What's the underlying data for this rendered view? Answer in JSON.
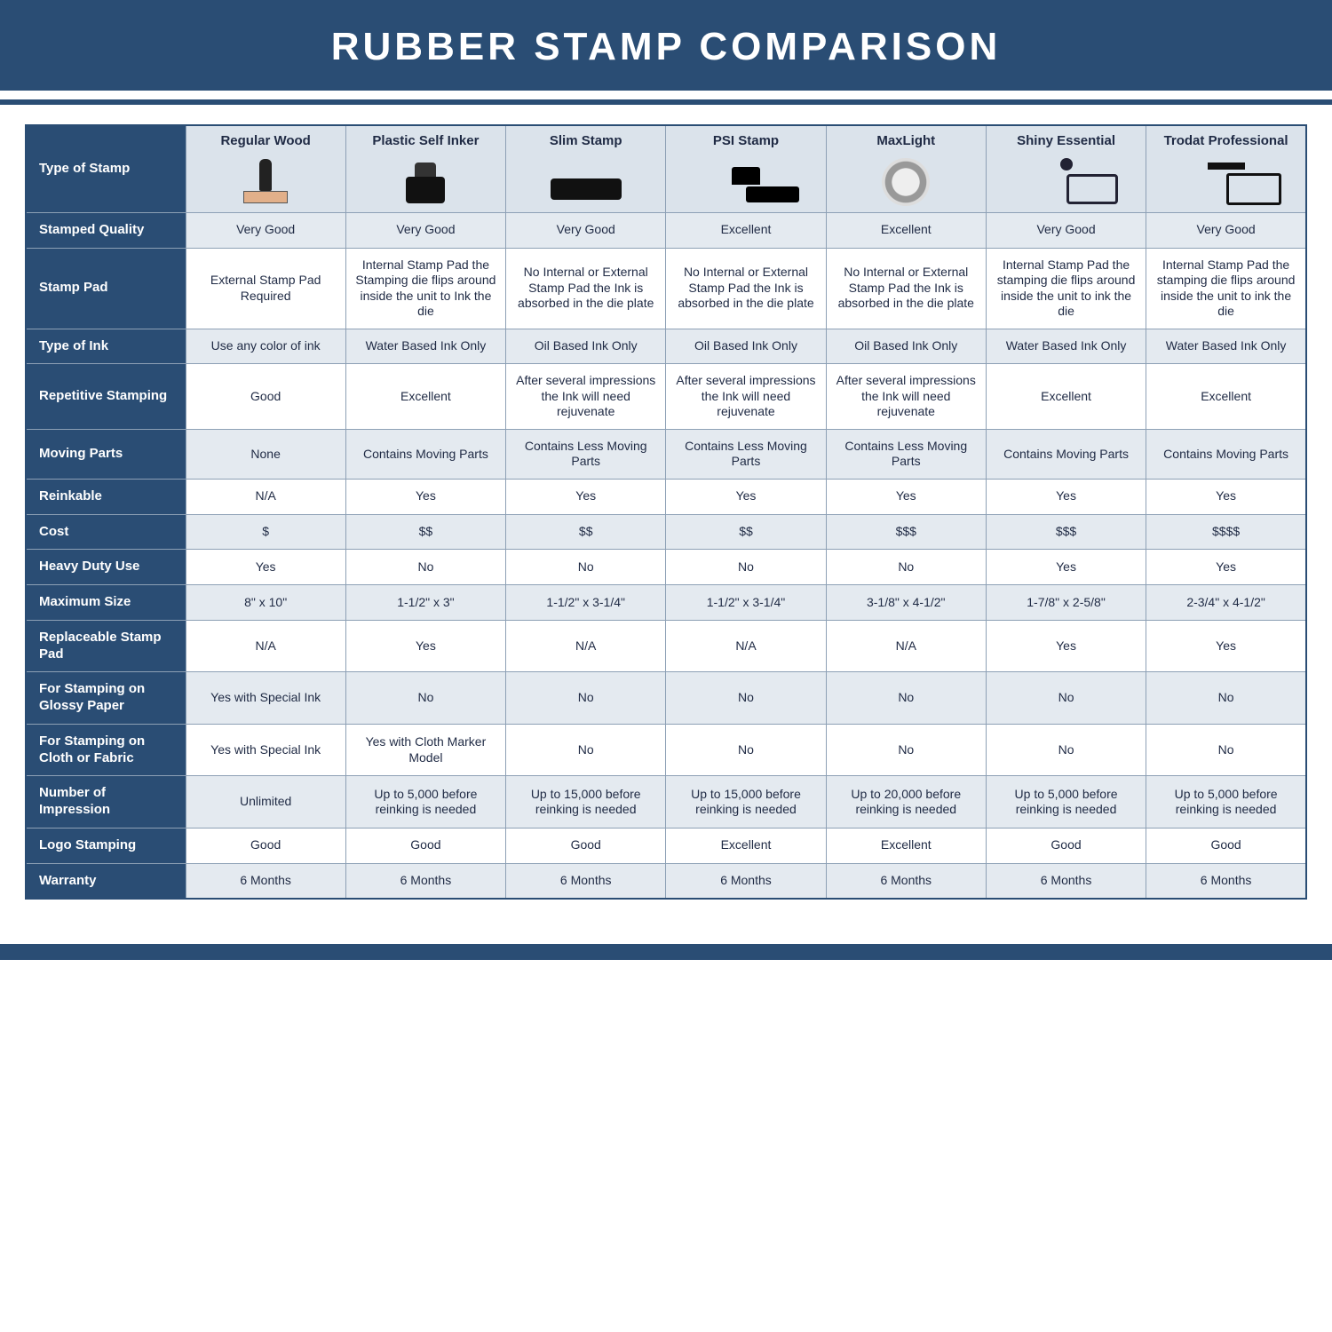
{
  "title": "RUBBER STAMP COMPARISON",
  "colors": {
    "brand": "#2a4d74",
    "shaded_row": "#e4eaf0",
    "header_cell": "#dbe3eb",
    "border": "#8da0b5",
    "text": "#1f2a44"
  },
  "columns": [
    "Regular Wood",
    "Plastic Self Inker",
    "Slim Stamp",
    "PSI Stamp",
    "MaxLight",
    "Shiny Essential",
    "Trodat Professional"
  ],
  "rows": [
    {
      "label": "Type of Stamp",
      "is_image_row": true
    },
    {
      "label": "Stamped Quality",
      "shaded": true,
      "cells": [
        "Very Good",
        "Very Good",
        "Very Good",
        "Excellent",
        "Excellent",
        "Very Good",
        "Very Good"
      ]
    },
    {
      "label": "Stamp Pad",
      "shaded": false,
      "cells": [
        "External Stamp Pad Required",
        "Internal Stamp Pad the Stamping die flips around inside the unit to Ink the die",
        "No Internal or External Stamp Pad the Ink is absorbed in the die plate",
        "No Internal or External Stamp Pad the Ink is absorbed in the die plate",
        "No Internal or External Stamp Pad the Ink is absorbed in the die plate",
        "Internal Stamp Pad the stamping die flips around inside the unit to ink the die",
        "Internal Stamp Pad the stamping die flips around inside the unit to ink the die"
      ]
    },
    {
      "label": "Type of Ink",
      "shaded": true,
      "cells": [
        "Use any color of ink",
        "Water Based Ink Only",
        "Oil Based Ink Only",
        "Oil Based Ink Only",
        "Oil Based Ink Only",
        "Water Based Ink Only",
        "Water Based Ink Only"
      ]
    },
    {
      "label": "Repetitive Stamping",
      "shaded": false,
      "cells": [
        "Good",
        "Excellent",
        "After several impressions the Ink will need rejuvenate",
        "After several impressions the Ink will need rejuvenate",
        "After several impressions the Ink will need rejuvenate",
        "Excellent",
        "Excellent"
      ]
    },
    {
      "label": "Moving Parts",
      "shaded": true,
      "cells": [
        "None",
        "Contains Moving Parts",
        "Contains Less Moving Parts",
        "Contains Less Moving Parts",
        "Contains Less Moving Parts",
        "Contains Moving Parts",
        "Contains Moving Parts"
      ]
    },
    {
      "label": "Reinkable",
      "shaded": false,
      "cells": [
        "N/A",
        "Yes",
        "Yes",
        "Yes",
        "Yes",
        "Yes",
        "Yes"
      ]
    },
    {
      "label": "Cost",
      "shaded": true,
      "cells": [
        "$",
        "$$",
        "$$",
        "$$",
        "$$$",
        "$$$",
        "$$$$"
      ]
    },
    {
      "label": "Heavy Duty Use",
      "shaded": false,
      "cells": [
        "Yes",
        "No",
        "No",
        "No",
        "No",
        "Yes",
        "Yes"
      ]
    },
    {
      "label": "Maximum Size",
      "shaded": true,
      "cells": [
        "8\" x 10\"",
        "1-1/2\" x 3\"",
        "1-1/2\" x 3-1/4\"",
        "1-1/2\" x 3-1/4\"",
        "3-1/8\" x 4-1/2\"",
        "1-7/8\" x 2-5/8\"",
        "2-3/4\" x 4-1/2\""
      ]
    },
    {
      "label": "Replaceable Stamp Pad",
      "shaded": false,
      "cells": [
        "N/A",
        "Yes",
        "N/A",
        "N/A",
        "N/A",
        "Yes",
        "Yes"
      ]
    },
    {
      "label": "For Stamping on Glossy Paper",
      "shaded": true,
      "cells": [
        "Yes with Special Ink",
        "No",
        "No",
        "No",
        "No",
        "No",
        "No"
      ]
    },
    {
      "label": "For Stamping on Cloth or Fabric",
      "shaded": false,
      "cells": [
        "Yes with Special Ink",
        "Yes with Cloth Marker Model",
        "No",
        "No",
        "No",
        "No",
        "No"
      ]
    },
    {
      "label": "Number of Impression",
      "shaded": true,
      "cells": [
        "Unlimited",
        "Up to 5,000 before reinking is needed",
        "Up to 15,000 before reinking is needed",
        "Up to 15,000 before reinking is needed",
        "Up to 20,000 before reinking is needed",
        "Up to 5,000 before reinking is needed",
        "Up to 5,000 before reinking is needed"
      ]
    },
    {
      "label": "Logo Stamping",
      "shaded": false,
      "cells": [
        "Good",
        "Good",
        "Good",
        "Excellent",
        "Excellent",
        "Good",
        "Good"
      ]
    },
    {
      "label": "Warranty",
      "shaded": true,
      "cells": [
        "6 Months",
        "6 Months",
        "6 Months",
        "6 Months",
        "6 Months",
        "6 Months",
        "6 Months"
      ]
    }
  ],
  "icon_keys": [
    "wood",
    "selfinker",
    "slim",
    "psi",
    "maxlight",
    "shiny",
    "trodat"
  ]
}
